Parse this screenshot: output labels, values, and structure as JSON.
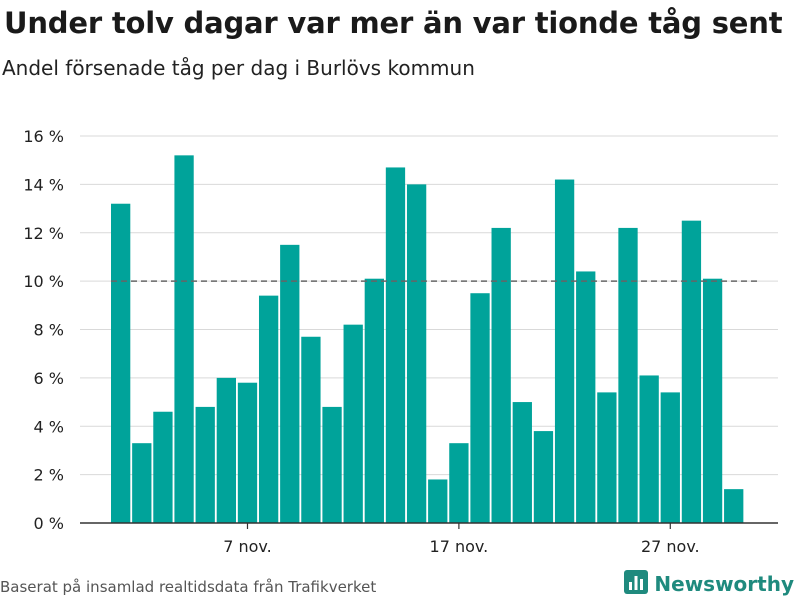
{
  "header": {
    "title": "Under tolv dagar var mer än var tionde tåg sent",
    "subtitle": "Andel försenade tåg per dag i Burlövs kommun"
  },
  "footer": {
    "source": "Baserat på insamlad realtidsdata från Trafikverket",
    "brand": "Newsworthy"
  },
  "colors": {
    "bar": "#00a39a",
    "brand": "#1f8a7e",
    "grid": "#d9d9d9",
    "reference_line": "#666666"
  },
  "icons": {
    "brand_logo": "bar-chart-icon"
  },
  "chart_data": {
    "type": "bar",
    "title": "Under tolv dagar var mer än var tionde tåg sent",
    "subtitle": "Andel försenade tåg per dag i Burlövs kommun",
    "xlabel": "",
    "ylabel": "",
    "x": [
      "2023-11-01",
      "2023-11-02",
      "2023-11-03",
      "2023-11-04",
      "2023-11-05",
      "2023-11-06",
      "2023-11-07",
      "2023-11-08",
      "2023-11-09",
      "2023-11-10",
      "2023-11-11",
      "2023-11-12",
      "2023-11-13",
      "2023-11-14",
      "2023-11-15",
      "2023-11-16",
      "2023-11-17",
      "2023-11-18",
      "2023-11-19",
      "2023-11-20",
      "2023-11-21",
      "2023-11-22",
      "2023-11-23",
      "2023-11-24",
      "2023-11-25",
      "2023-11-26",
      "2023-11-27",
      "2023-11-28",
      "2023-11-29",
      "2023-11-30"
    ],
    "values": [
      13.2,
      3.3,
      4.6,
      15.2,
      4.8,
      6.0,
      5.8,
      9.4,
      11.5,
      7.7,
      4.8,
      8.2,
      10.1,
      14.7,
      14.0,
      1.8,
      3.3,
      9.5,
      12.2,
      5.0,
      3.8,
      14.2,
      10.4,
      5.4,
      12.2,
      6.1,
      5.4,
      12.5,
      10.1,
      1.4
    ],
    "reference_line": {
      "value": 10,
      "style": "dashed"
    },
    "ylim": [
      0,
      16
    ],
    "yticks": [
      0,
      2,
      4,
      6,
      8,
      10,
      12,
      14,
      16
    ],
    "ytick_labels": [
      "0 %",
      "2 %",
      "4 %",
      "6 %",
      "8 %",
      "10 %",
      "12 %",
      "14 %",
      "16 %"
    ],
    "xticks": [
      {
        "date": "2023-11-07",
        "label": "7 nov."
      },
      {
        "date": "2023-11-17",
        "label": "17 nov."
      },
      {
        "date": "2023-11-27",
        "label": "27 nov."
      }
    ],
    "grid": true
  }
}
